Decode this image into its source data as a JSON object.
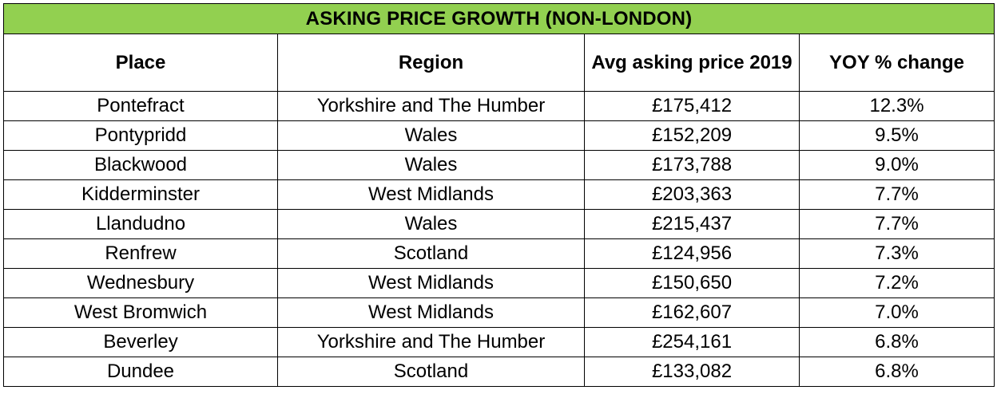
{
  "title": "ASKING PRICE GROWTH (NON-LONDON)",
  "colors": {
    "title_bg": "#92d050",
    "border": "#000000",
    "text": "#000000"
  },
  "columns": [
    "Place",
    "Region",
    "Avg asking price 2019",
    "YOY % change"
  ],
  "rows": [
    {
      "place": "Pontefract",
      "region": "Yorkshire and The Humber",
      "price": "£175,412",
      "yoy": "12.3%"
    },
    {
      "place": "Pontypridd",
      "region": "Wales",
      "price": "£152,209",
      "yoy": "9.5%"
    },
    {
      "place": "Blackwood",
      "region": "Wales",
      "price": "£173,788",
      "yoy": "9.0%"
    },
    {
      "place": "Kidderminster",
      "region": "West Midlands",
      "price": "£203,363",
      "yoy": "7.7%"
    },
    {
      "place": "Llandudno",
      "region": "Wales",
      "price": "£215,437",
      "yoy": "7.7%"
    },
    {
      "place": "Renfrew",
      "region": "Scotland",
      "price": "£124,956",
      "yoy": "7.3%"
    },
    {
      "place": "Wednesbury",
      "region": "West Midlands",
      "price": "£150,650",
      "yoy": "7.2%"
    },
    {
      "place": "West Bromwich",
      "region": "West Midlands",
      "price": "£162,607",
      "yoy": "7.0%"
    },
    {
      "place": "Beverley",
      "region": "Yorkshire and The Humber",
      "price": "£254,161",
      "yoy": "6.8%"
    },
    {
      "place": "Dundee",
      "region": "Scotland",
      "price": "£133,082",
      "yoy": "6.8%"
    }
  ]
}
